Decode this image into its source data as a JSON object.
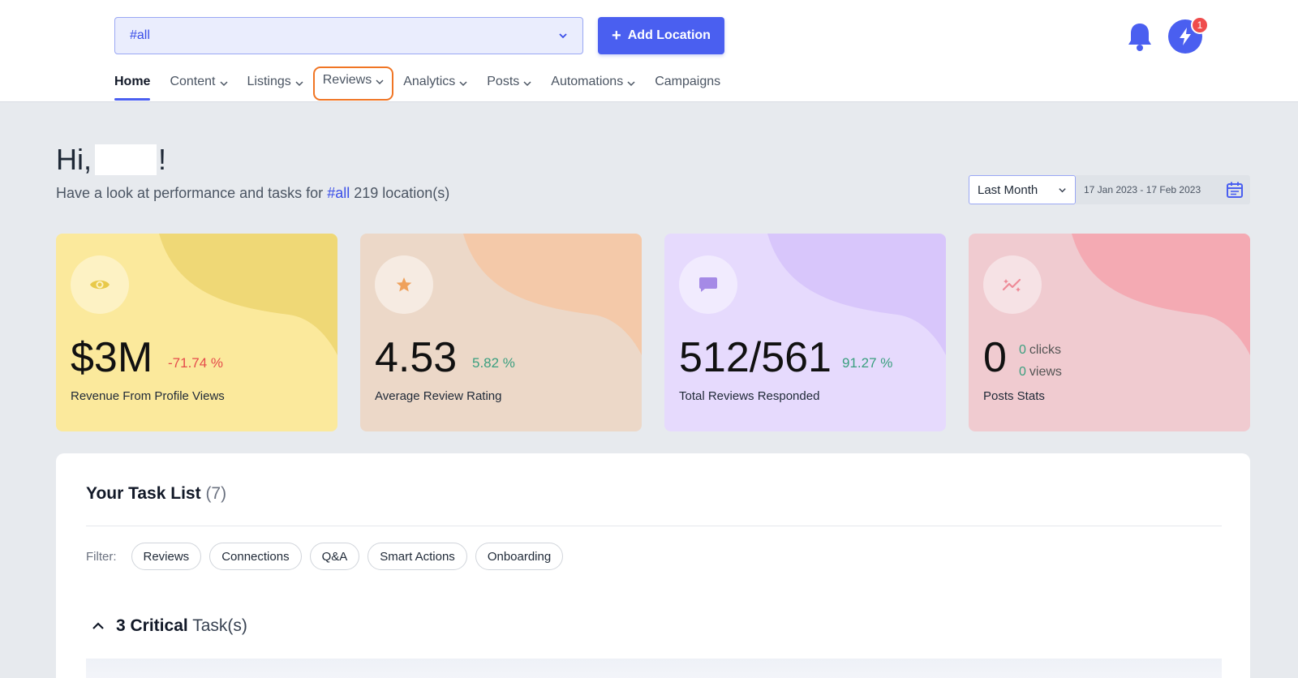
{
  "header": {
    "location_select": "#all",
    "add_location_label": "Add Location",
    "notification_count": "1"
  },
  "nav": [
    {
      "label": "Home"
    },
    {
      "label": "Content"
    },
    {
      "label": "Listings"
    },
    {
      "label": "Reviews"
    },
    {
      "label": "Analytics"
    },
    {
      "label": "Posts"
    },
    {
      "label": "Automations"
    },
    {
      "label": "Campaigns"
    }
  ],
  "greeting": {
    "prefix": "Hi,",
    "suffix": "!",
    "sub_prefix": "Have a look at performance and tasks for",
    "sub_hash": "#all",
    "sub_suffix": "219 location(s)"
  },
  "period": {
    "selected": "Last Month",
    "range": "17 Jan 2023 - 17 Feb 2023"
  },
  "cards": [
    {
      "value": "$3M",
      "change": "-71.74 %",
      "label": "Revenue From Profile Views",
      "icon": "eye-icon"
    },
    {
      "value": "4.53",
      "change": "5.82 %",
      "label": "Average Review Rating",
      "icon": "star-icon"
    },
    {
      "value": "512/561",
      "change": "91.27 %",
      "label": "Total Reviews Responded",
      "icon": "message-icon"
    },
    {
      "value": "0",
      "clicks_value": "0",
      "clicks_label": "clicks",
      "views_value": "0",
      "views_label": "views",
      "label": "Posts Stats",
      "icon": "sparkle-trend-icon"
    }
  ],
  "tasks": {
    "title": "Your Task List",
    "count": "(7)",
    "filter_label": "Filter:",
    "filters": [
      "Reviews",
      "Connections",
      "Q&A",
      "Smart Actions",
      "Onboarding"
    ],
    "critical_count": "3 Critical",
    "critical_suffix": "Task(s)"
  },
  "colors": {
    "accent": "#4a5ff0",
    "highlight_outline": "#f07524",
    "negative": "#e54b4b",
    "positive": "#3a9f7f"
  }
}
